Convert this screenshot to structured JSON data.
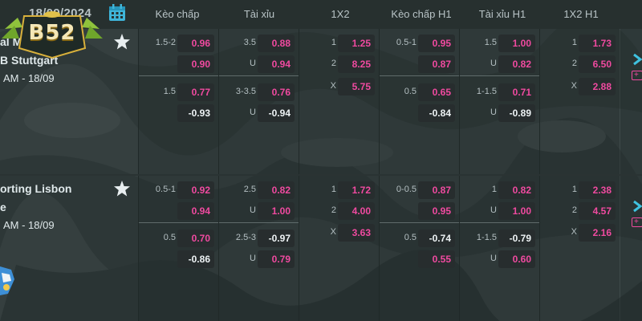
{
  "header": {
    "date": "18/09/2024",
    "columns": [
      "Kèo chấp",
      "Tài xỉu",
      "1X2",
      "Kèo chấp H1",
      "Tài xỉu H1",
      "1X2 H1"
    ]
  },
  "brand": {
    "logo_text": "B52"
  },
  "matches": [
    {
      "team1": "al M",
      "team2": "B Stuttgart",
      "time": "AM - 18/09",
      "odds": [
        [
          {
            "label": "1.5-2",
            "value": "0.96",
            "color": "pink"
          },
          {
            "label": "",
            "value": "0.90",
            "color": "pink"
          },
          {
            "label": "1.5",
            "value": "0.77",
            "color": "pink"
          },
          {
            "label": "",
            "value": "-0.93",
            "color": "white"
          }
        ],
        [
          {
            "label": "3.5",
            "value": "0.88",
            "color": "pink"
          },
          {
            "label": "U",
            "value": "0.94",
            "color": "pink"
          },
          {
            "label": "3-3.5",
            "value": "0.76",
            "color": "pink"
          },
          {
            "label": "U",
            "value": "-0.94",
            "color": "white"
          }
        ],
        [
          {
            "label": "1",
            "value": "1.25",
            "color": "pink"
          },
          {
            "label": "2",
            "value": "8.25",
            "color": "pink"
          },
          {
            "label": "X",
            "value": "5.75",
            "color": "pink"
          }
        ],
        [
          {
            "label": "0.5-1",
            "value": "0.95",
            "color": "pink"
          },
          {
            "label": "",
            "value": "0.87",
            "color": "pink"
          },
          {
            "label": "0.5",
            "value": "0.65",
            "color": "pink"
          },
          {
            "label": "",
            "value": "-0.84",
            "color": "white"
          }
        ],
        [
          {
            "label": "1.5",
            "value": "1.00",
            "color": "pink"
          },
          {
            "label": "U",
            "value": "0.82",
            "color": "pink"
          },
          {
            "label": "1-1.5",
            "value": "0.71",
            "color": "pink"
          },
          {
            "label": "U",
            "value": "-0.89",
            "color": "white"
          }
        ],
        [
          {
            "label": "1",
            "value": "1.73",
            "color": "pink"
          },
          {
            "label": "2",
            "value": "6.50",
            "color": "pink"
          },
          {
            "label": "X",
            "value": "2.88",
            "color": "pink"
          }
        ]
      ]
    },
    {
      "team1": "orting Lisbon",
      "team2": "e",
      "time": "AM - 18/09",
      "odds": [
        [
          {
            "label": "0.5-1",
            "value": "0.92",
            "color": "pink"
          },
          {
            "label": "",
            "value": "0.94",
            "color": "pink"
          },
          {
            "label": "0.5",
            "value": "0.70",
            "color": "pink"
          },
          {
            "label": "",
            "value": "-0.86",
            "color": "white"
          }
        ],
        [
          {
            "label": "2.5",
            "value": "0.82",
            "color": "pink"
          },
          {
            "label": "U",
            "value": "1.00",
            "color": "pink"
          },
          {
            "label": "2.5-3",
            "value": "-0.97",
            "color": "white"
          },
          {
            "label": "U",
            "value": "0.79",
            "color": "pink"
          }
        ],
        [
          {
            "label": "1",
            "value": "1.72",
            "color": "pink"
          },
          {
            "label": "2",
            "value": "4.00",
            "color": "pink"
          },
          {
            "label": "X",
            "value": "3.63",
            "color": "pink"
          }
        ],
        [
          {
            "label": "0-0.5",
            "value": "0.87",
            "color": "pink"
          },
          {
            "label": "",
            "value": "0.95",
            "color": "pink"
          },
          {
            "label": "0.5",
            "value": "-0.74",
            "color": "white"
          },
          {
            "label": "",
            "value": "0.55",
            "color": "pink"
          }
        ],
        [
          {
            "label": "1",
            "value": "0.82",
            "color": "pink"
          },
          {
            "label": "U",
            "value": "1.00",
            "color": "pink"
          },
          {
            "label": "1-1.5",
            "value": "-0.79",
            "color": "white"
          },
          {
            "label": "U",
            "value": "0.60",
            "color": "pink"
          }
        ],
        [
          {
            "label": "1",
            "value": "2.38",
            "color": "pink"
          },
          {
            "label": "2",
            "value": "4.57",
            "color": "pink"
          },
          {
            "label": "X",
            "value": "2.16",
            "color": "pink"
          }
        ]
      ]
    }
  ],
  "icons": {
    "calendar": "calendar-icon",
    "favorite": "star-icon",
    "expand": "chevron-right-icon",
    "more": "plus-icon"
  },
  "colors": {
    "odds_positive": "#f04aa0",
    "odds_negative": "#eef3f5",
    "header_bg": "#27302f"
  }
}
